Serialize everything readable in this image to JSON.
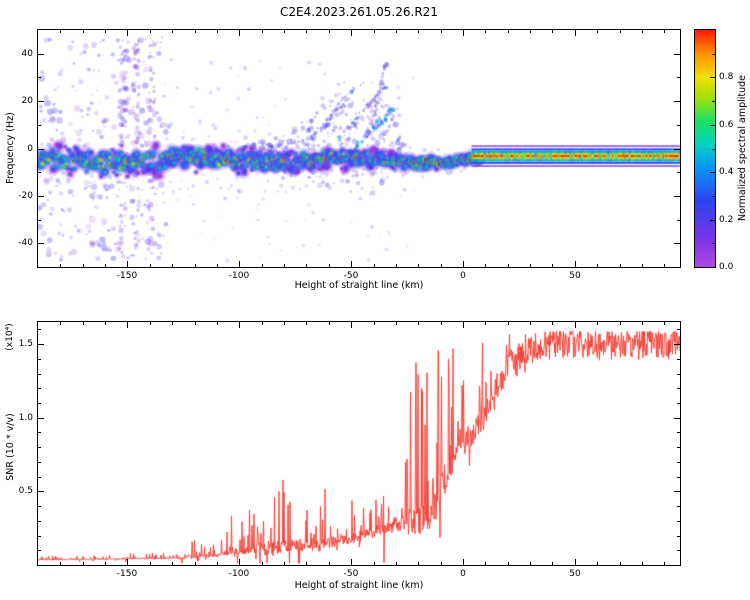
{
  "title": "C2E4.2023.261.05.26.R21",
  "chart_data": [
    {
      "type": "heatmap",
      "title": "C2E4.2023.261.05.26.R21",
      "xlabel": "Height of straight line (km)",
      "ylabel": "Frequency (Hz)",
      "xlim": [
        -190,
        97
      ],
      "ylim": [
        -50,
        50
      ],
      "xticks": [
        -150,
        -100,
        -50,
        0,
        50
      ],
      "yticks": [
        -40,
        -20,
        0,
        20,
        40
      ],
      "grid": false,
      "colorbar": {
        "label": "Normalized spectral amplitude",
        "ticks": [
          0.0,
          0.2,
          0.4,
          0.6,
          0.8
        ],
        "lim": [
          0,
          1
        ],
        "colormap": [
          [
            0.0,
            "#ad4be0"
          ],
          [
            0.12,
            "#7a34e8"
          ],
          [
            0.28,
            "#2c44f0"
          ],
          [
            0.42,
            "#0896f8"
          ],
          [
            0.52,
            "#00d4c0"
          ],
          [
            0.62,
            "#20e060"
          ],
          [
            0.72,
            "#a8e000"
          ],
          [
            0.8,
            "#f0e000"
          ],
          [
            0.9,
            "#ff9000"
          ],
          [
            1.0,
            "#ff1800"
          ]
        ]
      },
      "features": {
        "band_center_hz": -5,
        "band_spread_hz_at_left": 8,
        "band_spread_hz_at_right": 2,
        "converged_line_start_km": 4,
        "converged_line_center_hz": -3.2,
        "noise_region_km": [
          -190,
          -132
        ],
        "noise_stripe_km": [
          -152,
          -146,
          -139
        ],
        "cloud_region_km": [
          -115,
          -25
        ],
        "diagonal_streaks_km": [
          -68,
          -30
        ],
        "description": "Scattered multicolored spectral blobs centered near -5 Hz, widely spread at negative heights, converging to a thin high-amplitude (red-core) horizontal line for heights above 0 km; faint purple noise speckles and vertical stripes at far left; faint purple cloud and diagonal streaks rising toward +30 Hz between -70 and -30 km."
      }
    },
    {
      "type": "line",
      "xlabel": "Height of straight line (km)",
      "ylabel": "SNR (10 * v/v)",
      "ylabel_scale": "(x10⁴)",
      "xlim": [
        -190,
        97
      ],
      "ylim": [
        0,
        1.65
      ],
      "xticks": [
        -150,
        -100,
        -50,
        0,
        50
      ],
      "yticks": [
        0.5,
        1.0,
        1.5
      ],
      "grid": false,
      "series": [
        {
          "name": "SNR",
          "color": "#f5382c",
          "envelope_x": [
            -190,
            -130,
            -110,
            -95,
            -85,
            -75,
            -62,
            -50,
            -40,
            -30,
            -22,
            -15,
            -8,
            -2,
            3,
            8,
            14,
            20,
            30,
            45,
            60,
            75,
            90,
            97
          ],
          "baseline": [
            0.035,
            0.045,
            0.07,
            0.1,
            0.12,
            0.13,
            0.15,
            0.18,
            0.22,
            0.27,
            0.3,
            0.35,
            0.55,
            0.8,
            0.85,
            0.95,
            1.15,
            1.35,
            1.47,
            1.52,
            1.5,
            1.49,
            1.51,
            1.48
          ],
          "spike": [
            0.02,
            0.04,
            0.18,
            0.35,
            0.55,
            0.4,
            0.4,
            0.3,
            0.3,
            0.45,
            1.1,
            1.15,
            0.95,
            0.7,
            0.65,
            0.55,
            0.35,
            0.18,
            0.08,
            0.06,
            0.06,
            0.06,
            0.06,
            0.06
          ]
        }
      ]
    }
  ]
}
